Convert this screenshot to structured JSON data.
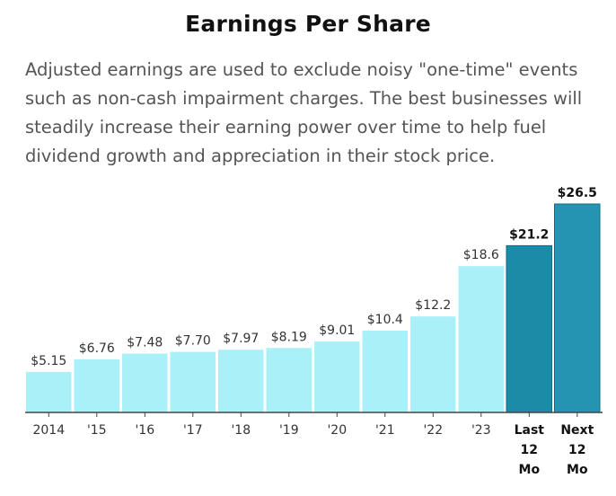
{
  "title": "Earnings Per Share",
  "subtitle": "Adjusted earnings are used to exclude noisy \"one-time\" events such as non-cash impairment charges. The best businesses will steadily increase their earning power over time to help fuel dividend growth and appreciation in their stock price.",
  "chart_data": {
    "type": "bar",
    "title": "Earnings Per Share",
    "xlabel": "",
    "ylabel": "",
    "ylim": [
      0,
      26.5
    ],
    "grid": false,
    "categories": [
      "2014",
      "'15",
      "'16",
      "'17",
      "'18",
      "'19",
      "'20",
      "'21",
      "'22",
      "'23",
      "Last 12 Mo",
      "Next 12 Mo"
    ],
    "tick_lines": [
      [
        "2014"
      ],
      [
        "'15"
      ],
      [
        "'16"
      ],
      [
        "'17"
      ],
      [
        "'18"
      ],
      [
        "'19"
      ],
      [
        "'20"
      ],
      [
        "'21"
      ],
      [
        "'22"
      ],
      [
        "'23"
      ],
      [
        "Last",
        "12",
        "Mo"
      ],
      [
        "Next",
        "12",
        "Mo"
      ]
    ],
    "values": [
      5.15,
      6.76,
      7.48,
      7.7,
      7.97,
      8.19,
      9.01,
      10.4,
      12.2,
      18.6,
      21.2,
      26.5
    ],
    "value_labels": [
      "$5.15",
      "$6.76",
      "$7.48",
      "$7.70",
      "$7.97",
      "$8.19",
      "$9.01",
      "$10.4",
      "$12.2",
      "$18.6",
      "$21.2",
      "$26.5"
    ],
    "highlight": [
      false,
      false,
      false,
      false,
      false,
      false,
      false,
      false,
      false,
      false,
      true,
      true
    ],
    "colors": {
      "bar": "#aaf0f8",
      "bar_highlight_last": "#1a8ca8",
      "bar_highlight_next": "#2494b2",
      "bar_outline_highlight": "#0f6d86",
      "axis": "#444444"
    }
  }
}
